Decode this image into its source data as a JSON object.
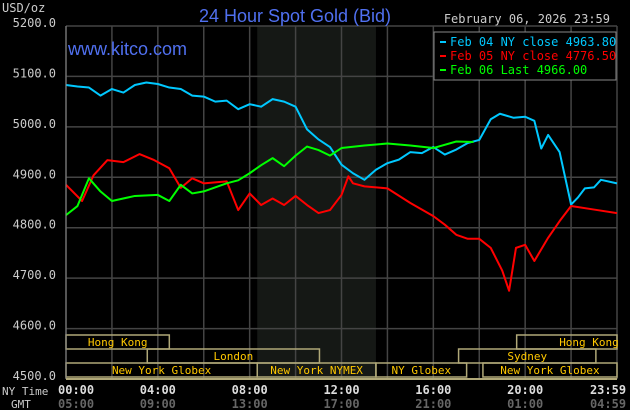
{
  "chart_data": {
    "type": "line",
    "title": "24 Hour Spot Gold (Bid)",
    "date": "February 06, 2026 23:59",
    "watermark": "www.kitco.com",
    "ylabel": "USD/oz",
    "ylim": [
      4500,
      5200
    ],
    "yticks": [
      "4500.0",
      "4600.0",
      "4700.0",
      "4800.0",
      "4900.0",
      "5000.0",
      "5100.0",
      "5200.0"
    ],
    "x_row_labels": [
      "NY Time",
      "GMT"
    ],
    "xticks": [
      {
        "h": 0,
        "ny": "00:00",
        "gmt": "05:00"
      },
      {
        "h": 4,
        "ny": "04:00",
        "gmt": "09:00"
      },
      {
        "h": 8,
        "ny": "08:00",
        "gmt": "13:00"
      },
      {
        "h": 12,
        "ny": "12:00",
        "gmt": "17:00"
      },
      {
        "h": 16,
        "ny": "16:00",
        "gmt": "21:00"
      },
      {
        "h": 20,
        "ny": "20:00",
        "gmt": "01:00"
      },
      {
        "h": 23.98,
        "ny": "23:59",
        "gmt": "04:59"
      }
    ],
    "grid": true,
    "shaded_hours": [
      8.33,
      13.5
    ],
    "legend_position": "top-right",
    "series": [
      {
        "name": "Feb 04 NY close 4963.80",
        "color": "#00c8ff",
        "x": [
          0,
          0.5,
          1,
          1.5,
          2,
          2.5,
          3,
          3.5,
          4,
          4.5,
          5,
          5.5,
          6,
          6.5,
          7,
          7.5,
          8,
          8.5,
          9,
          9.5,
          10,
          10.5,
          11,
          11.5,
          12,
          12.5,
          13,
          13.5,
          14,
          14.5,
          15,
          15.5,
          16,
          16.5,
          17,
          17.5,
          18,
          18.5,
          18.9,
          19.5,
          20,
          20.4,
          20.7,
          21,
          21.5,
          22,
          22.3,
          22.6,
          23,
          23.3,
          24
        ],
        "y": [
          5083,
          5080,
          5078,
          5062,
          5075,
          5068,
          5083,
          5088,
          5085,
          5078,
          5075,
          5062,
          5060,
          5050,
          5052,
          5035,
          5045,
          5040,
          5055,
          5050,
          5040,
          4995,
          4975,
          4960,
          4925,
          4908,
          4895,
          4915,
          4928,
          4935,
          4950,
          4948,
          4960,
          4945,
          4955,
          4968,
          4974,
          5015,
          5026,
          5018,
          5020,
          5012,
          4957,
          4984,
          4950,
          4846,
          4860,
          4878,
          4880,
          4895,
          4888
        ]
      },
      {
        "name": "Feb 05 NY close 4776.50",
        "color": "#ff0000",
        "x": [
          0,
          0.7,
          1.2,
          1.8,
          2.5,
          3.2,
          3.8,
          4.5,
          5,
          5.5,
          6,
          7,
          7.5,
          8,
          8.5,
          9,
          9.5,
          10,
          10.5,
          11,
          11.5,
          12,
          12.3,
          12.5,
          13,
          14,
          15,
          16,
          16.5,
          17,
          17.5,
          18,
          18.5,
          19,
          19.3,
          19.6,
          20,
          20.4,
          21,
          21.5,
          22,
          23,
          24
        ],
        "y": [
          4885,
          4853,
          4904,
          4934,
          4930,
          4946,
          4935,
          4918,
          4879,
          4898,
          4888,
          4892,
          4835,
          4868,
          4845,
          4858,
          4845,
          4863,
          4845,
          4829,
          4835,
          4865,
          4902,
          4888,
          4882,
          4878,
          4849,
          4823,
          4806,
          4786,
          4778,
          4778,
          4760,
          4715,
          4675,
          4760,
          4766,
          4734,
          4780,
          4813,
          4843,
          4836,
          4829
        ]
      },
      {
        "name": "Feb 06 Last 4966.00",
        "color": "#00ff00",
        "x": [
          0,
          0.5,
          1,
          1.5,
          2,
          3,
          4,
          4.5,
          5,
          5.5,
          6,
          7,
          7.5,
          8,
          8.5,
          9,
          9.5,
          10,
          10.5,
          11,
          11.5,
          12,
          13,
          14,
          15,
          16,
          17,
          17.75
        ],
        "y": [
          4825,
          4843,
          4898,
          4872,
          4853,
          4863,
          4865,
          4853,
          4885,
          4868,
          4872,
          4888,
          4894,
          4908,
          4924,
          4938,
          4922,
          4943,
          4961,
          4954,
          4943,
          4958,
          4963,
          4967,
          4963,
          4958,
          4971,
          4970
        ]
      }
    ],
    "sessions": [
      {
        "label": "Hong Kong",
        "row": 0,
        "start": 0,
        "end": 4.5
      },
      {
        "label": "Hong Kong",
        "row": 0,
        "start": 19.63,
        "end": 24
      },
      {
        "label": "London",
        "row": 1,
        "start": 3.54,
        "end": 11.04
      },
      {
        "label": "Sydney",
        "row": 1,
        "start": 17.1,
        "end": 23.08
      },
      {
        "label": "New York Globex",
        "row": 2,
        "start": 0,
        "end": 8.33
      },
      {
        "label": "New York NYMEX",
        "row": 2,
        "start": 8.33,
        "end": 13.5
      },
      {
        "label": "NY Globex",
        "row": 2,
        "start": 13.5,
        "end": 17.45
      },
      {
        "label": "New York Globex",
        "row": 2,
        "start": 18.16,
        "end": 24
      }
    ]
  }
}
